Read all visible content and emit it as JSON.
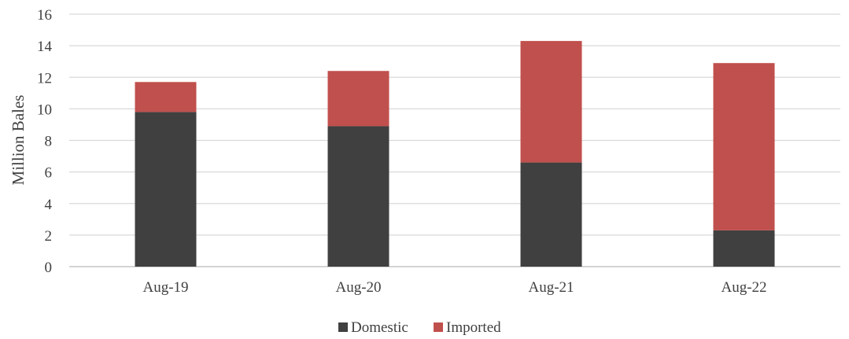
{
  "chart_data": {
    "type": "bar",
    "stacked": true,
    "categories": [
      "Aug-19",
      "Aug-20",
      "Aug-21",
      "Aug-22"
    ],
    "series": [
      {
        "name": "Domestic",
        "color": "#404040",
        "values": [
          9.8,
          8.9,
          6.6,
          2.3
        ]
      },
      {
        "name": "Imported",
        "color": "#c0504d",
        "values": [
          1.9,
          3.5,
          7.7,
          10.6
        ]
      }
    ],
    "ylabel": "Million Bales",
    "xlabel": "",
    "ylim": [
      0,
      16
    ],
    "yticks": [
      0,
      2,
      4,
      6,
      8,
      10,
      12,
      14,
      16
    ],
    "grid": true,
    "legend_position": "bottom"
  }
}
